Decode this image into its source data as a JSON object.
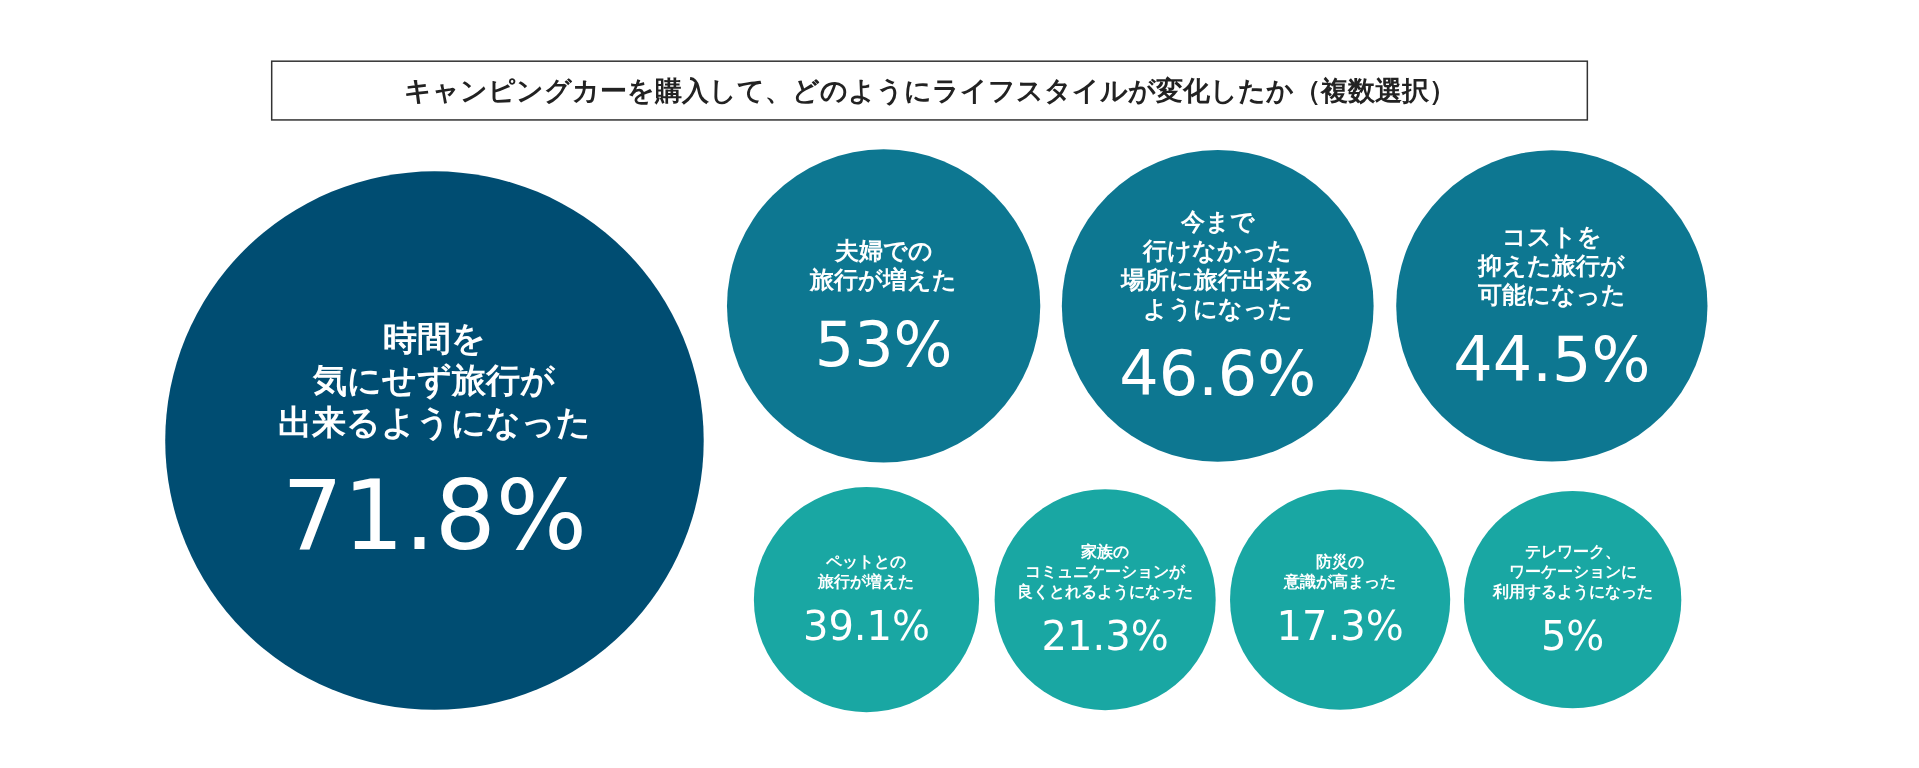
{
  "chart_data": {
    "type": "other",
    "title": "キャンピングカーを購入して、どのようにライフスタイルが変化したか（複数選択）",
    "categories": [
      "時間を気にせず旅行が出来るようになった",
      "夫婦での旅行が増えた",
      "今まで行けなかった場所に旅行出来るようになった",
      "コストを抑えた旅行が可能になった",
      "ペットとの旅行が増えた",
      "家族のコミュニケーションが良くとれるようになった",
      "防災の意識が高まった",
      "テレワーク、ワーケーションに利用するようになった"
    ],
    "values": [
      71.8,
      53,
      46.6,
      44.5,
      39.1,
      21.3,
      17.3,
      5
    ],
    "value_labels": [
      "71.8%",
      "53%",
      "46.6%",
      "44.5%",
      "39.1%",
      "21.3%",
      "17.3%",
      "5%"
    ],
    "colors": [
      "#004d72",
      "#0d7791",
      "#0d7791",
      "#0d7791",
      "#19a7a3",
      "#19a7a3",
      "#19a7a3",
      "#19a7a3"
    ]
  }
}
